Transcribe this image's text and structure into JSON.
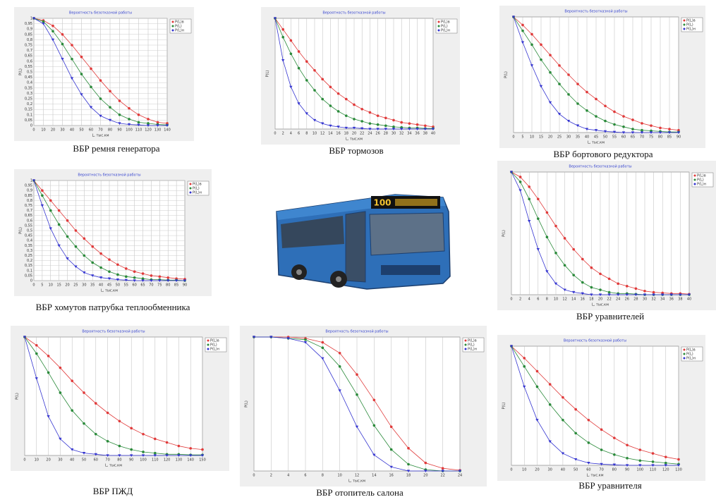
{
  "chart_data": [
    {
      "type": "line",
      "title": "Вероятность безотказной работы",
      "caption": "ВБР ремня генератора",
      "xlabel": "L, тыс.км",
      "ylabel": "P(L)",
      "grid": "both",
      "x": [
        0,
        10,
        20,
        30,
        40,
        50,
        60,
        70,
        80,
        90,
        100,
        110,
        120,
        130,
        140
      ],
      "xlim": [
        0,
        140
      ],
      "xticks": [
        0,
        10,
        20,
        30,
        40,
        50,
        60,
        70,
        80,
        90,
        100,
        110,
        120,
        130,
        140
      ],
      "ylim": [
        0,
        1
      ],
      "yticks": [
        {
          "value": 0,
          "label": "0"
        },
        {
          "value": 0.05,
          "label": "0,05"
        },
        {
          "value": 0.1,
          "label": "0,1"
        },
        {
          "value": 0.15,
          "label": "0,15"
        },
        {
          "value": 0.2,
          "label": "0,2"
        },
        {
          "value": 0.25,
          "label": "0,25"
        },
        {
          "value": 0.3,
          "label": "0,3"
        },
        {
          "value": 0.35,
          "label": "0,35"
        },
        {
          "value": 0.4,
          "label": "0,4"
        },
        {
          "value": 0.45,
          "label": "0,45"
        },
        {
          "value": 0.5,
          "label": "0,5"
        },
        {
          "value": 0.55,
          "label": "0,55"
        },
        {
          "value": 0.6,
          "label": "0,6"
        },
        {
          "value": 0.65,
          "label": "0,65"
        },
        {
          "value": 0.7,
          "label": "0,7"
        },
        {
          "value": 0.75,
          "label": "0,75"
        },
        {
          "value": 0.8,
          "label": "0,8"
        },
        {
          "value": 0.85,
          "label": "0,85"
        },
        {
          "value": 0.9,
          "label": "0,9"
        },
        {
          "value": 0.95,
          "label": "0,95"
        },
        {
          "value": 1,
          "label": "1"
        }
      ],
      "series": [
        {
          "name": "P(L)в",
          "color": "#e03a3a",
          "marker": "circle",
          "values": [
            1,
            0.98,
            0.93,
            0.85,
            0.75,
            0.64,
            0.53,
            0.42,
            0.32,
            0.23,
            0.16,
            0.1,
            0.06,
            0.03,
            0.02
          ]
        },
        {
          "name": "P(L)",
          "color": "#2a8a3a",
          "marker": "circle",
          "values": [
            1,
            0.97,
            0.88,
            0.76,
            0.62,
            0.48,
            0.36,
            0.25,
            0.17,
            0.1,
            0.06,
            0.03,
            0.02,
            0.01,
            0.005
          ]
        },
        {
          "name": "P(L)н",
          "color": "#3434d0",
          "marker": "triangle",
          "values": [
            1,
            0.95,
            0.8,
            0.62,
            0.44,
            0.29,
            0.17,
            0.09,
            0.05,
            0.02,
            0.01,
            0.005,
            0,
            0,
            0
          ]
        }
      ]
    },
    {
      "type": "line",
      "title": "Вероятность безотказной работы",
      "caption": "ВБР тормозов",
      "xlabel": "L, тыс.км",
      "ylabel": "P(L)",
      "grid": "x",
      "x": [
        0,
        2,
        4,
        6,
        8,
        10,
        12,
        14,
        16,
        18,
        20,
        22,
        24,
        26,
        28,
        30,
        32,
        34,
        36,
        38,
        40
      ],
      "xlim": [
        0,
        40
      ],
      "xticks": [
        0,
        2,
        4,
        6,
        8,
        10,
        12,
        14,
        16,
        18,
        20,
        22,
        24,
        26,
        28,
        30,
        32,
        34,
        36,
        38,
        40
      ],
      "ylim": [
        0,
        1
      ],
      "series": [
        {
          "name": "P(L)в",
          "color": "#e03a3a",
          "marker": "circle",
          "values": [
            1,
            0.9,
            0.8,
            0.7,
            0.61,
            0.53,
            0.45,
            0.38,
            0.32,
            0.27,
            0.22,
            0.18,
            0.15,
            0.12,
            0.1,
            0.08,
            0.06,
            0.05,
            0.04,
            0.03,
            0.02
          ]
        },
        {
          "name": "P(L)",
          "color": "#2a8a3a",
          "marker": "circle",
          "values": [
            1,
            0.83,
            0.68,
            0.55,
            0.44,
            0.35,
            0.27,
            0.21,
            0.16,
            0.12,
            0.09,
            0.07,
            0.05,
            0.04,
            0.03,
            0.02,
            0.015,
            0.01,
            0.01,
            0.005,
            0.005
          ]
        },
        {
          "name": "P(L)н",
          "color": "#3434d0",
          "marker": "triangle",
          "values": [
            1,
            0.62,
            0.38,
            0.23,
            0.14,
            0.08,
            0.05,
            0.03,
            0.02,
            0.01,
            0.01,
            0.005,
            0,
            0,
            0,
            0,
            0,
            0,
            0,
            0,
            0
          ]
        }
      ]
    },
    {
      "type": "line",
      "title": "Вероятность безотказной работы",
      "caption": "ВБР бортового редуктора",
      "xlabel": "L, тыс.км",
      "ylabel": "P(L)",
      "grid": "x",
      "x": [
        0,
        5,
        10,
        15,
        20,
        25,
        30,
        35,
        40,
        45,
        50,
        55,
        60,
        65,
        70,
        75,
        80,
        85,
        90
      ],
      "xlim": [
        0,
        90
      ],
      "xticks": [
        0,
        5,
        10,
        15,
        20,
        25,
        30,
        35,
        40,
        45,
        50,
        55,
        60,
        65,
        70,
        75,
        80,
        85,
        90
      ],
      "ylim": [
        0,
        1
      ],
      "series": [
        {
          "name": "P(L)в",
          "color": "#e03a3a",
          "marker": "circle",
          "values": [
            1,
            0.93,
            0.85,
            0.76,
            0.67,
            0.58,
            0.5,
            0.42,
            0.35,
            0.29,
            0.23,
            0.18,
            0.14,
            0.11,
            0.08,
            0.06,
            0.04,
            0.03,
            0.02
          ]
        },
        {
          "name": "P(L)",
          "color": "#2a8a3a",
          "marker": "circle",
          "values": [
            1,
            0.88,
            0.76,
            0.63,
            0.52,
            0.42,
            0.33,
            0.25,
            0.19,
            0.14,
            0.1,
            0.07,
            0.05,
            0.03,
            0.02,
            0.015,
            0.01,
            0.005,
            0.005
          ]
        },
        {
          "name": "P(L)н",
          "color": "#3434d0",
          "marker": "triangle",
          "values": [
            1,
            0.78,
            0.58,
            0.4,
            0.26,
            0.16,
            0.1,
            0.06,
            0.03,
            0.02,
            0.01,
            0.005,
            0,
            0,
            0,
            0,
            0,
            0,
            0
          ]
        }
      ]
    },
    {
      "type": "line",
      "title": "Вероятность безотказной работы",
      "caption": "ВБР хомутов патрубка теплообменника",
      "xlabel": "L, тыс.км",
      "ylabel": "P(L)",
      "grid": "both",
      "x": [
        0,
        5,
        10,
        15,
        20,
        25,
        30,
        35,
        40,
        45,
        50,
        55,
        60,
        65,
        70,
        75,
        80,
        85,
        90
      ],
      "xlim": [
        0,
        90
      ],
      "xticks": [
        0,
        5,
        10,
        15,
        20,
        25,
        30,
        35,
        40,
        45,
        50,
        55,
        60,
        65,
        70,
        75,
        80,
        85,
        90
      ],
      "ylim": [
        0,
        1
      ],
      "yticks": [
        {
          "value": 0,
          "label": "0"
        },
        {
          "value": 0.05,
          "label": "0,05"
        },
        {
          "value": 0.1,
          "label": "0,1"
        },
        {
          "value": 0.15,
          "label": "0,15"
        },
        {
          "value": 0.2,
          "label": "0,2"
        },
        {
          "value": 0.25,
          "label": "0,25"
        },
        {
          "value": 0.3,
          "label": "0,3"
        },
        {
          "value": 0.35,
          "label": "0,35"
        },
        {
          "value": 0.4,
          "label": "0,4"
        },
        {
          "value": 0.45,
          "label": "0,45"
        },
        {
          "value": 0.5,
          "label": "0,5"
        },
        {
          "value": 0.55,
          "label": "0,55"
        },
        {
          "value": 0.6,
          "label": "0,6"
        },
        {
          "value": 0.65,
          "label": "0,65"
        },
        {
          "value": 0.7,
          "label": "0,7"
        },
        {
          "value": 0.75,
          "label": "0,75"
        },
        {
          "value": 0.8,
          "label": "0,8"
        },
        {
          "value": 0.85,
          "label": "0,85"
        },
        {
          "value": 0.9,
          "label": "0,9"
        },
        {
          "value": 0.95,
          "label": "0,95"
        },
        {
          "value": 1,
          "label": "1"
        }
      ],
      "series": [
        {
          "name": "P(L)в",
          "color": "#e03a3a",
          "marker": "circle",
          "values": [
            1,
            0.9,
            0.8,
            0.7,
            0.6,
            0.5,
            0.42,
            0.34,
            0.27,
            0.21,
            0.16,
            0.12,
            0.09,
            0.07,
            0.05,
            0.04,
            0.03,
            0.02,
            0.015
          ]
        },
        {
          "name": "P(L)",
          "color": "#2a8a3a",
          "marker": "circle",
          "values": [
            1,
            0.85,
            0.7,
            0.56,
            0.44,
            0.34,
            0.25,
            0.18,
            0.13,
            0.09,
            0.06,
            0.04,
            0.03,
            0.02,
            0.01,
            0.01,
            0.005,
            0.005,
            0
          ]
        },
        {
          "name": "P(L)н",
          "color": "#3434d0",
          "marker": "triangle",
          "values": [
            1,
            0.75,
            0.52,
            0.35,
            0.22,
            0.14,
            0.08,
            0.05,
            0.03,
            0.02,
            0.01,
            0.005,
            0,
            0,
            0,
            0,
            0,
            0,
            0
          ]
        }
      ]
    },
    {
      "type": "line",
      "title": "Вероятность безотказной работы",
      "caption": "ВБР уравнителей",
      "xlabel": "L, тыс.км",
      "ylabel": "P(L)",
      "grid": "x",
      "x": [
        0,
        2,
        4,
        6,
        8,
        10,
        12,
        14,
        16,
        18,
        20,
        22,
        24,
        26,
        28,
        30,
        32,
        34,
        36,
        38,
        40
      ],
      "xlim": [
        0,
        40
      ],
      "xticks": [
        0,
        2,
        4,
        6,
        8,
        10,
        12,
        14,
        16,
        18,
        20,
        22,
        24,
        26,
        28,
        30,
        32,
        34,
        36,
        38,
        40
      ],
      "ylim": [
        0,
        1
      ],
      "series": [
        {
          "name": "P(L)в",
          "color": "#e03a3a",
          "marker": "circle",
          "values": [
            1,
            0.96,
            0.88,
            0.78,
            0.67,
            0.56,
            0.46,
            0.37,
            0.29,
            0.22,
            0.17,
            0.13,
            0.09,
            0.07,
            0.05,
            0.03,
            0.02,
            0.015,
            0.01,
            0.01,
            0.005
          ]
        },
        {
          "name": "P(L)",
          "color": "#2a8a3a",
          "marker": "circle",
          "values": [
            1,
            0.92,
            0.78,
            0.62,
            0.47,
            0.34,
            0.24,
            0.16,
            0.1,
            0.06,
            0.04,
            0.02,
            0.01,
            0.01,
            0.005,
            0,
            0,
            0,
            0,
            0,
            0
          ]
        },
        {
          "name": "P(L)н",
          "color": "#3434d0",
          "marker": "triangle",
          "values": [
            1,
            0.85,
            0.6,
            0.37,
            0.19,
            0.09,
            0.04,
            0.02,
            0.01,
            0,
            0,
            0,
            0,
            0,
            0,
            0,
            0,
            0,
            0,
            0,
            0
          ]
        }
      ]
    },
    {
      "type": "line",
      "title": "Вероятность безотказной работы",
      "caption": "ВБР ПЖД",
      "xlabel": "L, тыс.км",
      "ylabel": "P(L)",
      "grid": "x",
      "x": [
        0,
        10,
        20,
        30,
        40,
        50,
        60,
        70,
        80,
        90,
        100,
        110,
        120,
        130,
        140,
        150
      ],
      "xlim": [
        0,
        150
      ],
      "xticks": [
        0,
        10,
        20,
        30,
        40,
        50,
        60,
        70,
        80,
        90,
        100,
        110,
        120,
        130,
        140,
        150
      ],
      "ylim": [
        0,
        1
      ],
      "series": [
        {
          "name": "P(L)в",
          "color": "#e03a3a",
          "marker": "circle",
          "values": [
            1,
            0.93,
            0.84,
            0.74,
            0.63,
            0.53,
            0.44,
            0.36,
            0.29,
            0.23,
            0.18,
            0.14,
            0.11,
            0.08,
            0.06,
            0.05
          ]
        },
        {
          "name": "P(L)",
          "color": "#2a8a3a",
          "marker": "circle",
          "values": [
            1,
            0.86,
            0.7,
            0.53,
            0.38,
            0.27,
            0.18,
            0.12,
            0.08,
            0.05,
            0.03,
            0.02,
            0.01,
            0.01,
            0.005,
            0.005
          ]
        },
        {
          "name": "P(L)н",
          "color": "#3434d0",
          "marker": "triangle",
          "values": [
            1,
            0.65,
            0.33,
            0.14,
            0.05,
            0.02,
            0.01,
            0,
            0,
            0,
            0,
            0,
            0,
            0,
            0,
            0
          ]
        }
      ]
    },
    {
      "type": "line",
      "title": "Вероятность безотказной работы",
      "caption": "ВБР отопитель салона",
      "xlabel": "L, тыс.км",
      "ylabel": "P(L)",
      "grid": "x",
      "x": [
        0,
        2,
        4,
        6,
        8,
        10,
        12,
        14,
        16,
        18,
        20,
        22,
        24
      ],
      "xlim": [
        0,
        24
      ],
      "xticks": [
        0,
        2,
        4,
        6,
        8,
        10,
        12,
        14,
        16,
        18,
        20,
        22,
        24
      ],
      "ylim": [
        0,
        1
      ],
      "series": [
        {
          "name": "P(L)в",
          "color": "#e03a3a",
          "marker": "circle",
          "values": [
            1,
            1,
            1,
            0.99,
            0.96,
            0.88,
            0.72,
            0.53,
            0.33,
            0.17,
            0.06,
            0.02,
            0.005
          ]
        },
        {
          "name": "P(L)",
          "color": "#2a8a3a",
          "marker": "circle",
          "values": [
            1,
            1,
            0.99,
            0.98,
            0.92,
            0.78,
            0.57,
            0.34,
            0.16,
            0.05,
            0.01,
            0,
            0
          ]
        },
        {
          "name": "P(L)н",
          "color": "#3434d0",
          "marker": "triangle",
          "values": [
            1,
            1,
            0.99,
            0.96,
            0.84,
            0.6,
            0.33,
            0.12,
            0.03,
            0,
            0,
            0,
            0
          ]
        }
      ]
    },
    {
      "type": "line",
      "title": "Вероятность безотказной работы",
      "caption": "ВБР уравнителя",
      "xlabel": "L, тыс.км",
      "ylabel": "P(L)",
      "grid": "x",
      "x": [
        0,
        10,
        20,
        30,
        40,
        50,
        60,
        70,
        80,
        90,
        100,
        110,
        120,
        130
      ],
      "xlim": [
        0,
        130
      ],
      "xticks": [
        0,
        10,
        20,
        30,
        40,
        50,
        60,
        70,
        80,
        90,
        100,
        110,
        120,
        130
      ],
      "ylim": [
        0,
        1
      ],
      "series": [
        {
          "name": "P(L)в",
          "color": "#e03a3a",
          "marker": "circle",
          "values": [
            1,
            0.9,
            0.79,
            0.68,
            0.57,
            0.47,
            0.38,
            0.3,
            0.23,
            0.17,
            0.13,
            0.1,
            0.07,
            0.05
          ]
        },
        {
          "name": "P(L)",
          "color": "#2a8a3a",
          "marker": "circle",
          "values": [
            1,
            0.83,
            0.66,
            0.51,
            0.38,
            0.27,
            0.19,
            0.13,
            0.09,
            0.06,
            0.04,
            0.03,
            0.02,
            0.01
          ]
        },
        {
          "name": "P(L)н",
          "color": "#3434d0",
          "marker": "triangle",
          "values": [
            1,
            0.66,
            0.38,
            0.2,
            0.1,
            0.05,
            0.02,
            0.01,
            0.005,
            0,
            0,
            0,
            0,
            0
          ]
        }
      ]
    }
  ],
  "photo": {
    "route_sign": "100"
  }
}
